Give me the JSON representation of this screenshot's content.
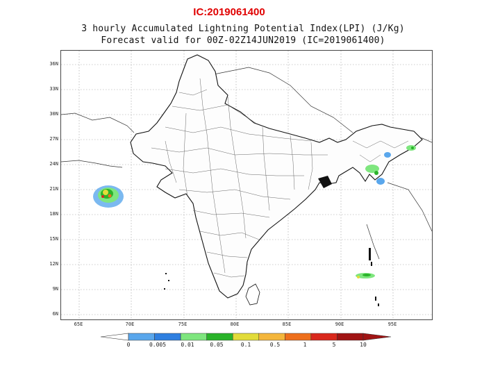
{
  "header": {
    "ic_label": "IC:2019061400",
    "title_line1": "3 hourly Accumulated Lightning Potential Index(LPI) (J/Kg)",
    "title_line2": "Forecast valid for 00Z-02Z14JUN2019 (IC=2019061400)"
  },
  "map": {
    "lon_ticks": [
      "65E",
      "70E",
      "75E",
      "80E",
      "85E",
      "90E",
      "95E"
    ],
    "lat_ticks": [
      "36N",
      "33N",
      "30N",
      "27N",
      "24N",
      "21N",
      "18N",
      "15N",
      "12N",
      "9N",
      "6N"
    ],
    "lon_range": [
      64,
      101
    ],
    "lat_range": [
      5,
      37
    ]
  },
  "legend": {
    "levels": [
      "0",
      "0.005",
      "0.01",
      "0.05",
      "0.1",
      "0.5",
      "1",
      "5",
      "10"
    ],
    "colors": [
      "#5aa7ec",
      "#2f7fe0",
      "#7ee67e",
      "#2ab32a",
      "#e2dc3a",
      "#f4b63c",
      "#ee6f1c",
      "#d9281c",
      "#a01414"
    ]
  }
}
